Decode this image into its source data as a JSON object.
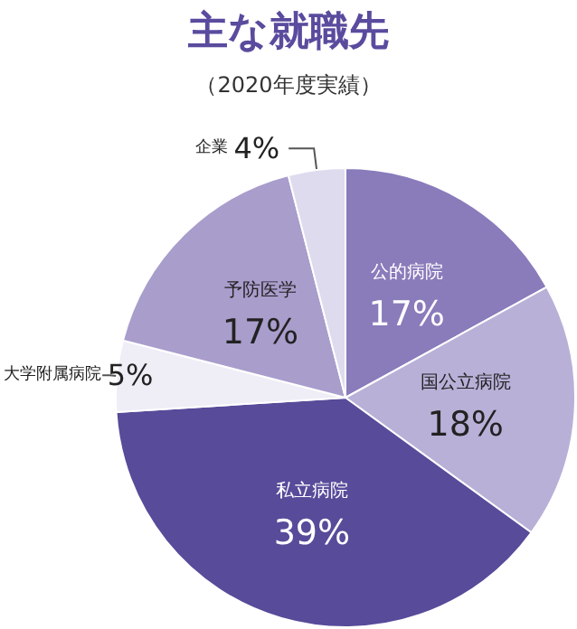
{
  "chart_data": {
    "type": "pie",
    "title": "主な就職先",
    "subtitle": "（2020年度実績）",
    "categories": [
      "公的病院",
      "国公立病院",
      "私立病院",
      "大学附属病院",
      "予防医学",
      "企業"
    ],
    "values": [
      17,
      18,
      39,
      5,
      17,
      4
    ],
    "colors": [
      "#8a7bbb",
      "#b9b0d8",
      "#574b9a",
      "#efedf6",
      "#a99dcc",
      "#dedbee"
    ],
    "value_labels": [
      "17%",
      "18%",
      "39%",
      "5%",
      "17%",
      "4%"
    ],
    "legend": false
  }
}
